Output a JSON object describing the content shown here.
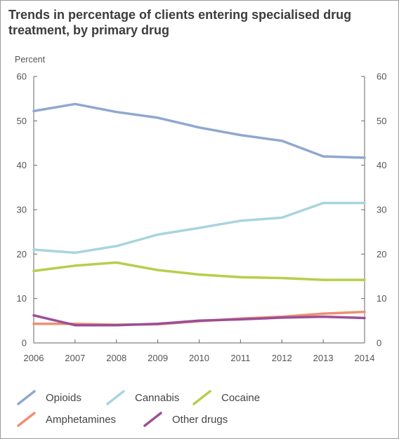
{
  "chart_data": {
    "type": "line",
    "title": "Trends in percentage of clients entering specialised drug treatment, by primary drug",
    "ylabel": "Percent",
    "xlabel": "",
    "x": [
      2006,
      2007,
      2008,
      2009,
      2010,
      2011,
      2012,
      2013,
      2014
    ],
    "ylim": [
      0,
      60
    ],
    "yticks": [
      0,
      10,
      20,
      30,
      40,
      50,
      60
    ],
    "y_axis_both_sides": true,
    "grid": false,
    "legend_position": "bottom",
    "series": [
      {
        "name": "Opioids",
        "color": "#8fa8cf",
        "values": [
          52.2,
          53.8,
          52.0,
          50.7,
          48.5,
          46.8,
          45.5,
          42.0,
          41.7
        ]
      },
      {
        "name": "Cannabis",
        "color": "#a8d4df",
        "values": [
          21.0,
          20.3,
          21.8,
          24.4,
          25.9,
          27.5,
          28.2,
          31.5,
          31.5
        ]
      },
      {
        "name": "Cocaine",
        "color": "#b5cf4a",
        "values": [
          16.2,
          17.4,
          18.1,
          16.4,
          15.4,
          14.8,
          14.6,
          14.2,
          14.2
        ]
      },
      {
        "name": "Amphetamines",
        "color": "#ee9070",
        "values": [
          4.3,
          4.3,
          4.1,
          4.2,
          4.9,
          5.5,
          5.9,
          6.6,
          7.0
        ]
      },
      {
        "name": "Other drugs",
        "color": "#9b4f97",
        "values": [
          6.2,
          4.0,
          4.0,
          4.3,
          5.0,
          5.3,
          5.7,
          5.9,
          5.6
        ]
      }
    ]
  }
}
